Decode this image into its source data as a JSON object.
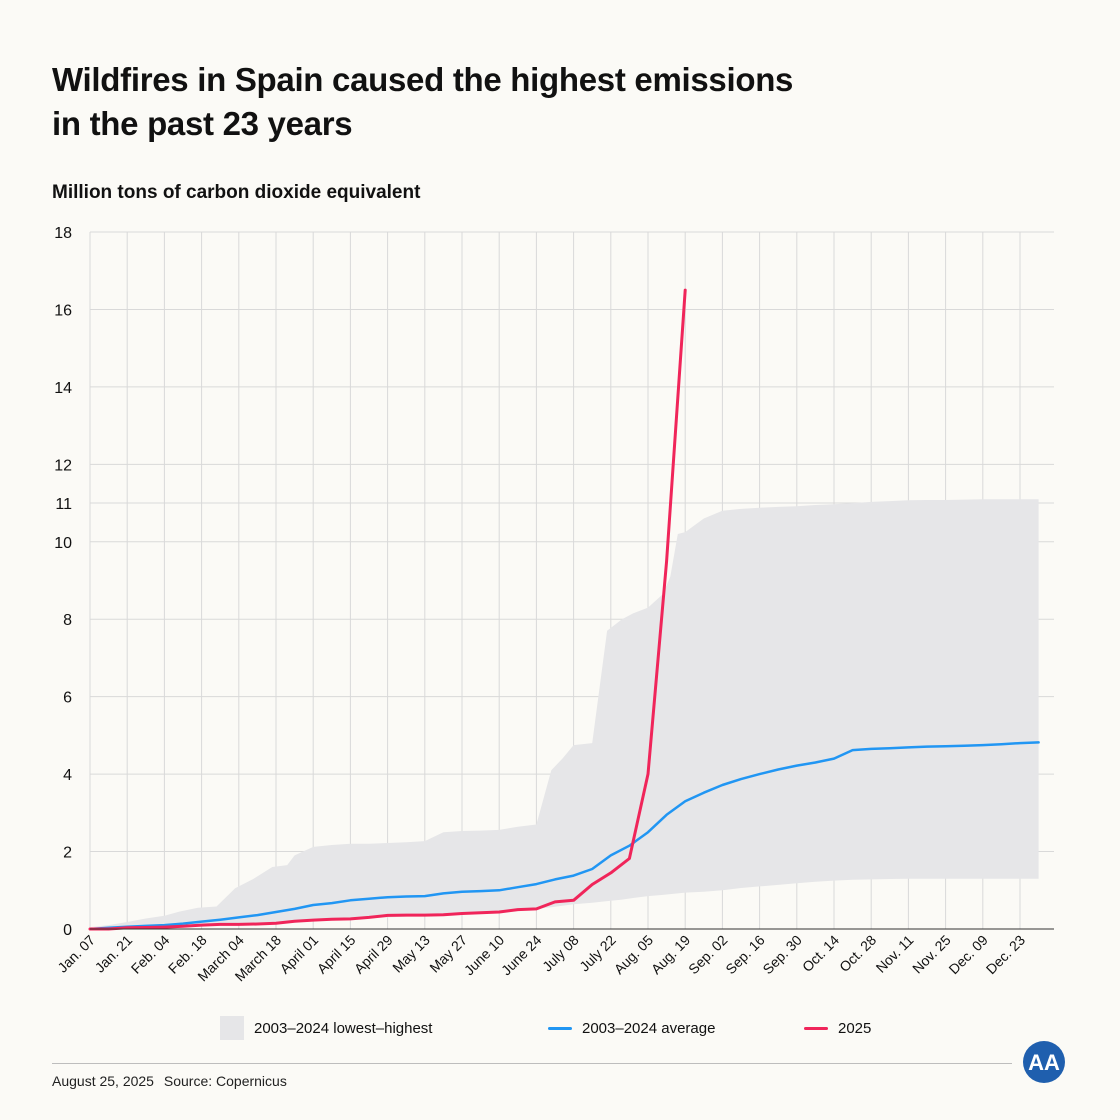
{
  "title_line1": "Wildfires in Spain caused the highest emissions",
  "title_line2": "in the past 23 years",
  "subtitle": "Million tons of carbon dioxide equivalent",
  "colors": {
    "band": "#e6e6e8",
    "average": "#2196f3",
    "current": "#f0255a",
    "grid": "#d9d9d9"
  },
  "legend": {
    "band": "2003–2024 lowest–highest",
    "average": "2003–2024 average",
    "current": "2025"
  },
  "footer": {
    "date": "August 25, 2025",
    "source": "Source: Copernicus"
  },
  "logo_text": "AA",
  "chart_data": {
    "type": "line",
    "title": "Wildfires in Spain caused the highest emissions in the past 23 years",
    "ylabel": "Million tons of carbon dioxide equivalent",
    "ylim": [
      0,
      18
    ],
    "yticks": [
      0,
      2,
      4,
      6,
      8,
      10,
      11,
      12,
      14,
      16,
      18
    ],
    "categories": [
      "Jan. 07",
      "Jan. 21",
      "Feb. 04",
      "Feb. 18",
      "March 04",
      "March 18",
      "April 01",
      "April 15",
      "April 29",
      "May 13",
      "May 27",
      "June 10",
      "June 24",
      "July 08",
      "July 22",
      "Aug. 05",
      "Aug. 19",
      "Sep. 02",
      "Sep. 16",
      "Sep. 30",
      "Oct. 14",
      "Oct. 28",
      "Nov. 11",
      "Nov. 25",
      "Dec. 09",
      "Dec. 23"
    ],
    "band_x": [
      0,
      0.5,
      1,
      1.5,
      2,
      2.4,
      2.9,
      3.4,
      3.9,
      4.4,
      4.9,
      5.3,
      5.5,
      6.0,
      6.5,
      7.0,
      7.5,
      8.0,
      8.5,
      9.0,
      9.5,
      10.0,
      10.5,
      11.0,
      11.5,
      12.0,
      12.4,
      12.7,
      13.0,
      13.5,
      13.9,
      14.3,
      14.6,
      15.0,
      15.4,
      15.6,
      15.8,
      16.0,
      16.5,
      17.0,
      17.5,
      18.0,
      18.5,
      19.0,
      19.5,
      20.0,
      20.5,
      21.0,
      21.5,
      22.0,
      22.5,
      23.0,
      23.5,
      24.0,
      24.5,
      25.0,
      25.5
    ],
    "band_high": [
      0.05,
      0.1,
      0.18,
      0.27,
      0.34,
      0.45,
      0.55,
      0.58,
      1.05,
      1.3,
      1.6,
      1.65,
      1.9,
      2.12,
      2.17,
      2.2,
      2.2,
      2.22,
      2.24,
      2.27,
      2.5,
      2.53,
      2.54,
      2.56,
      2.64,
      2.7,
      4.1,
      4.4,
      4.75,
      4.8,
      7.7,
      8.0,
      8.15,
      8.3,
      8.65,
      9.1,
      10.2,
      10.25,
      10.6,
      10.8,
      10.85,
      10.88,
      10.9,
      10.92,
      10.95,
      10.97,
      11.0,
      11.03,
      11.05,
      11.07,
      11.08,
      11.08,
      11.09,
      11.1,
      11.1,
      11.1,
      11.1
    ],
    "band_low": [
      0.0,
      0.0,
      0.01,
      0.02,
      0.03,
      0.05,
      0.07,
      0.09,
      0.11,
      0.13,
      0.15,
      0.18,
      0.2,
      0.22,
      0.24,
      0.26,
      0.28,
      0.3,
      0.32,
      0.34,
      0.36,
      0.38,
      0.4,
      0.42,
      0.48,
      0.52,
      0.56,
      0.6,
      0.64,
      0.68,
      0.72,
      0.76,
      0.8,
      0.85,
      0.88,
      0.9,
      0.92,
      0.94,
      0.96,
      1.0,
      1.06,
      1.1,
      1.14,
      1.18,
      1.22,
      1.25,
      1.27,
      1.28,
      1.29,
      1.3,
      1.3,
      1.3,
      1.3,
      1.3,
      1.3,
      1.3,
      1.3
    ],
    "series": [
      {
        "name": "2003–2024 average",
        "x": [
          0,
          0.5,
          1,
          1.5,
          2,
          2.5,
          3,
          3.5,
          4,
          4.5,
          5,
          5.5,
          6,
          6.5,
          7,
          7.5,
          8,
          8.5,
          9,
          9.5,
          10,
          10.5,
          11,
          11.5,
          12,
          12.5,
          13,
          13.5,
          14,
          14.5,
          15,
          15.5,
          16,
          16.5,
          17,
          17.5,
          18,
          18.5,
          19,
          19.5,
          20,
          20.5,
          21,
          21.5,
          22,
          22.5,
          23,
          23.5,
          24,
          24.5,
          25,
          25.5
        ],
        "values": [
          0.0,
          0.03,
          0.06,
          0.08,
          0.1,
          0.14,
          0.19,
          0.24,
          0.3,
          0.36,
          0.44,
          0.52,
          0.62,
          0.67,
          0.74,
          0.78,
          0.82,
          0.84,
          0.85,
          0.92,
          0.96,
          0.98,
          1.0,
          1.08,
          1.16,
          1.28,
          1.38,
          1.55,
          1.9,
          2.15,
          2.5,
          2.95,
          3.3,
          3.52,
          3.72,
          3.87,
          4.0,
          4.12,
          4.22,
          4.3,
          4.4,
          4.62,
          4.65,
          4.67,
          4.69,
          4.71,
          4.72,
          4.73,
          4.75,
          4.77,
          4.8,
          4.82
        ]
      },
      {
        "name": "2025",
        "x": [
          0,
          0.5,
          1,
          1.5,
          2,
          2.5,
          3,
          3.5,
          4,
          4.5,
          5,
          5.5,
          6,
          6.5,
          7,
          7.5,
          8,
          8.5,
          9,
          9.5,
          10,
          10.5,
          11,
          11.5,
          12,
          12.5,
          13,
          13.5,
          14,
          14.5,
          15,
          15.5,
          16
        ],
        "values": [
          0.0,
          0.0,
          0.03,
          0.04,
          0.05,
          0.07,
          0.1,
          0.12,
          0.12,
          0.13,
          0.15,
          0.2,
          0.23,
          0.25,
          0.26,
          0.3,
          0.35,
          0.36,
          0.36,
          0.37,
          0.4,
          0.42,
          0.44,
          0.5,
          0.52,
          0.7,
          0.74,
          1.15,
          1.45,
          1.82,
          4.0,
          9.5,
          16.5
        ]
      }
    ]
  }
}
